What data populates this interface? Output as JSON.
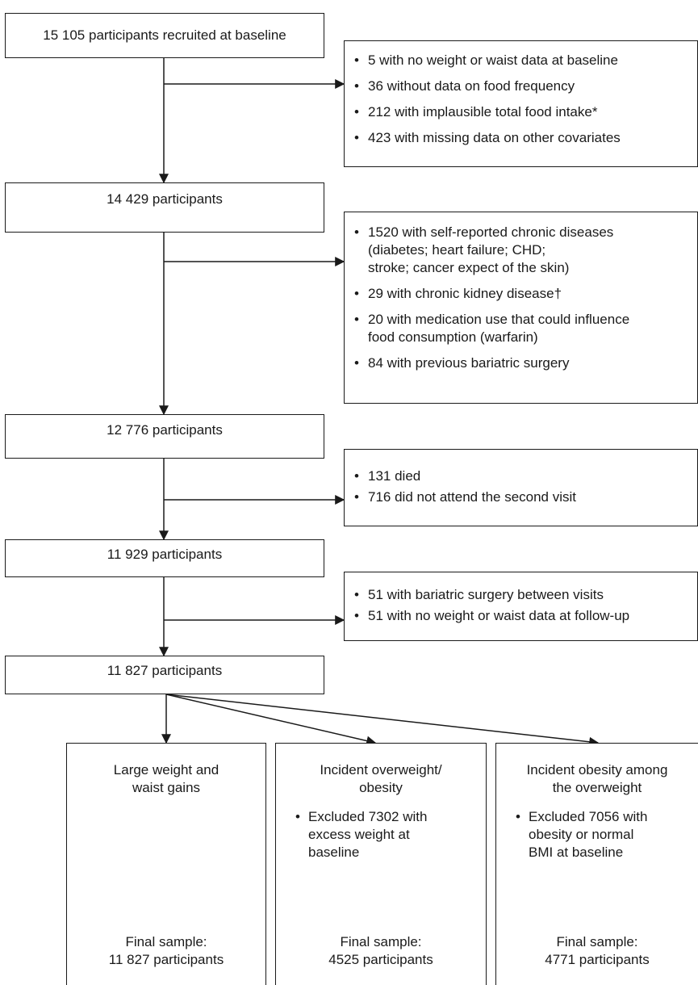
{
  "steps": [
    {
      "label": "15 105 participants recruited at baseline"
    },
    {
      "label": "14 429 participants"
    },
    {
      "label": "12 776 participants"
    },
    {
      "label": "11 929 participants"
    },
    {
      "label": "11 827 participants"
    }
  ],
  "exclusions": [
    {
      "items": [
        "5 with no weight or waist data at baseline",
        "36 without data on food frequency",
        "212 with implausible total food intake*",
        "423 with missing data on other covariates"
      ]
    },
    {
      "items": [
        "1520 with self-reported chronic diseases",
        "(diabetes; heart failure; CHD;",
        "stroke; cancer expect of the skin)",
        "29 with chronic kidney disease†",
        "20 with medication use that could influence",
        "food consumption (warfarin)",
        "84 with previous bariatric surgery"
      ]
    },
    {
      "items": [
        "131 died",
        "716 did not attend the second visit"
      ]
    },
    {
      "items": [
        "51 with bariatric surgery between visits",
        "51 with no weight or waist data at follow-up"
      ]
    }
  ],
  "outcomes": [
    {
      "title_1": "Large weight and",
      "title_2": "waist gains",
      "exclusion": "",
      "final_1": "Final sample:",
      "final_2": "11 827 participants"
    },
    {
      "title_1": "Incident overweight/",
      "title_2": "obesity",
      "exclusion_1": "Excluded 7302 with",
      "exclusion_2": "excess weight at",
      "exclusion_3": "baseline",
      "final_1": "Final sample:",
      "final_2": "4525 participants"
    },
    {
      "title_1": "Incident obesity among",
      "title_2": "the overweight",
      "exclusion_1": "Excluded 7056 with",
      "exclusion_2": "obesity or normal",
      "exclusion_3": "BMI at baseline",
      "final_1": "Final sample:",
      "final_2": "4771 participants"
    }
  ]
}
